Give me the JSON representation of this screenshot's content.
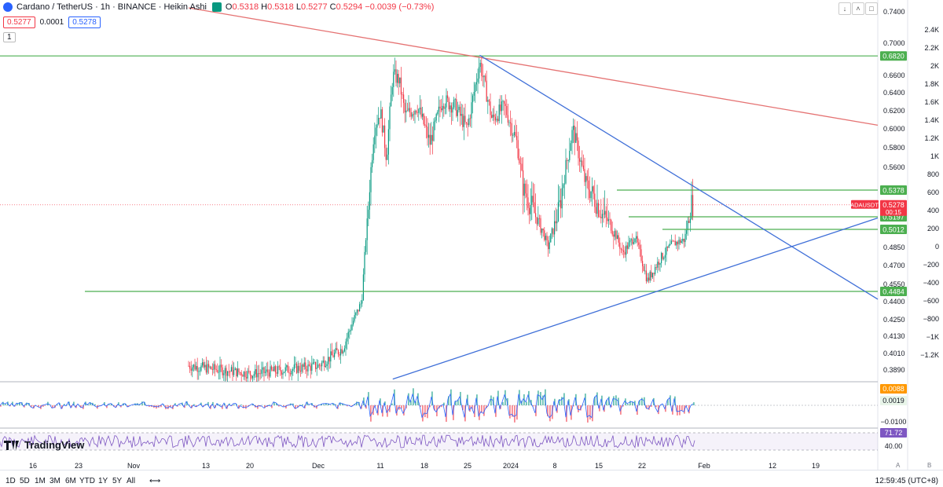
{
  "header": {
    "title": "Cardano / TetherUS · 1h · BINANCE · Heikin Ashi",
    "ohlc": [
      {
        "k": "O",
        "v": "0.5318"
      },
      {
        "k": "H",
        "v": "0.5318"
      },
      {
        "k": "L",
        "v": "0.5277"
      },
      {
        "k": "C",
        "v": "0.5294"
      },
      {
        "k": "",
        "v": "−0.0039 (−0.73%)"
      }
    ],
    "bid": "0.5277",
    "spread": "0.0001",
    "ask": "0.5278",
    "multiplier": "1",
    "toolbar_icons": [
      "arrow-down-icon",
      "chevron-up-icon",
      "maximize-icon",
      "close-icon"
    ]
  },
  "brand": "TradingView",
  "bottom": {
    "timeframes": [
      "1D",
      "5D",
      "1M",
      "3M",
      "6M",
      "YTD",
      "1Y",
      "5Y",
      "All"
    ],
    "clock": "12:59:45 (UTC+8)",
    "scale_buttons": [
      "A",
      "B"
    ]
  },
  "chart_data": {
    "type": "candlestick",
    "title": "Cardano / TetherUS · 1h · BINANCE · Heikin Ashi",
    "symbol": "ADAUSDT",
    "x_ticks": [
      "16",
      "23",
      "Nov",
      "13",
      "20",
      "Dec",
      "11",
      "18",
      "25",
      "2024",
      "8",
      "15",
      "22",
      "Feb",
      "12",
      "19"
    ],
    "price_axis_ticks": [
      "0.7400",
      "0.7000",
      "0.6800",
      "0.6600",
      "0.6400",
      "0.6200",
      "0.6000",
      "0.5800",
      "0.5600",
      "0.4850",
      "0.4700",
      "0.4550",
      "0.4400",
      "0.4250",
      "0.4130",
      "0.4010",
      "0.3890"
    ],
    "secondary_axis_ticks": [
      "2.4K",
      "2.2K",
      "2K",
      "1.8K",
      "1.6K",
      "1.4K",
      "1.2K",
      "1K",
      "800",
      "600",
      "400",
      "200",
      "0",
      "−200",
      "−400",
      "−600",
      "−800",
      "−1K",
      "−1.2K"
    ],
    "price_labels": [
      {
        "label": "0.6820",
        "price": 0.682,
        "color": "#4caf50"
      },
      {
        "label": "0.5378",
        "price": 0.5378,
        "color": "#4caf50"
      },
      {
        "label": "0.5197",
        "price": 0.5197,
        "color": "#4caf50"
      },
      {
        "label": "0.5012",
        "price": 0.5012,
        "color": "#4caf50"
      },
      {
        "label": "0.4484",
        "price": 0.4484,
        "color": "#4caf50"
      }
    ],
    "current": {
      "symbol": "ADAUSDT",
      "price": "0.5278",
      "countdown": "00:15"
    },
    "horizontal_levels": [
      0.682,
      0.5378,
      0.5197,
      0.5012,
      0.4484
    ],
    "trendlines": [
      {
        "color": "#e57373",
        "from": [
          "Oct 2023",
          0.745
        ],
        "to": [
          "Feb 2024",
          0.604
        ]
      },
      {
        "color": "#3f6fd8",
        "from": [
          "Dec 27 2023",
          0.683
        ],
        "to": [
          "Feb 2024",
          0.442
        ]
      },
      {
        "color": "#3f6fd8",
        "from": [
          "Dec 13 2023",
          0.382
        ],
        "to": [
          "Feb 2024",
          0.518
        ]
      }
    ],
    "price_path": [
      [
        "Nov 10",
        0.392
      ],
      [
        "Nov 20",
        0.386
      ],
      [
        "Dec 1",
        0.392
      ],
      [
        "Dec 5",
        0.405
      ],
      [
        "Dec 8",
        0.44
      ],
      [
        "Dec 9",
        0.52
      ],
      [
        "Dec 10",
        0.6
      ],
      [
        "Dec 11",
        0.62
      ],
      [
        "Dec 12",
        0.57
      ],
      [
        "Dec 13",
        0.66
      ],
      [
        "Dec 14",
        0.655
      ],
      [
        "Dec 15",
        0.615
      ],
      [
        "Dec 17",
        0.625
      ],
      [
        "Dec 19",
        0.585
      ],
      [
        "Dec 21",
        0.632
      ],
      [
        "Dec 23",
        0.625
      ],
      [
        "Dec 25",
        0.6
      ],
      [
        "Dec 27",
        0.675
      ],
      [
        "Dec 29",
        0.61
      ],
      [
        "Dec 31",
        0.625
      ],
      [
        "Jan 2",
        0.585
      ],
      [
        "Jan 3",
        0.54
      ],
      [
        "Jan 5",
        0.52
      ],
      [
        "Jan 7",
        0.485
      ],
      [
        "Jan 9",
        0.53
      ],
      [
        "Jan 11",
        0.6
      ],
      [
        "Jan 13",
        0.545
      ],
      [
        "Jan 15",
        0.528
      ],
      [
        "Jan 17",
        0.51
      ],
      [
        "Jan 19",
        0.48
      ],
      [
        "Jan 21",
        0.495
      ],
      [
        "Jan 23",
        0.458
      ],
      [
        "Jan 25",
        0.475
      ],
      [
        "Jan 27",
        0.488
      ],
      [
        "Jan 29",
        0.492
      ],
      [
        "Jan 30",
        0.528
      ]
    ],
    "oscillator": {
      "labels": [
        "0.0088",
        "0.0019",
        "−0.0100"
      ]
    },
    "rsi": {
      "labels": [
        "71.72",
        "40.00"
      ]
    }
  }
}
